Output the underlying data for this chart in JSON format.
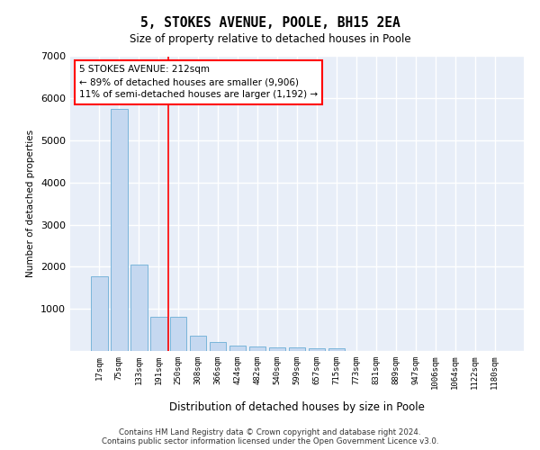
{
  "title": "5, STOKES AVENUE, POOLE, BH15 2EA",
  "subtitle": "Size of property relative to detached houses in Poole",
  "xlabel": "Distribution of detached houses by size in Poole",
  "ylabel": "Number of detached properties",
  "categories": [
    "17sqm",
    "75sqm",
    "133sqm",
    "191sqm",
    "250sqm",
    "308sqm",
    "366sqm",
    "424sqm",
    "482sqm",
    "540sqm",
    "599sqm",
    "657sqm",
    "715sqm",
    "773sqm",
    "831sqm",
    "889sqm",
    "947sqm",
    "1006sqm",
    "1064sqm",
    "1122sqm",
    "1180sqm"
  ],
  "values": [
    1780,
    5760,
    2060,
    820,
    820,
    360,
    210,
    120,
    105,
    95,
    80,
    70,
    60,
    0,
    0,
    0,
    0,
    0,
    0,
    0,
    0
  ],
  "bar_color": "#c5d8f0",
  "bar_edge_color": "#6baed6",
  "background_color": "#e8eef8",
  "grid_color": "#ffffff",
  "vline_position": 3.5,
  "vline_color": "red",
  "annotation_text_line1": "5 STOKES AVENUE: 212sqm",
  "annotation_text_line2": "← 89% of detached houses are smaller (9,906)",
  "annotation_text_line3": "11% of semi-detached houses are larger (1,192) →",
  "ylim": [
    0,
    7000
  ],
  "yticks": [
    0,
    1000,
    2000,
    3000,
    4000,
    5000,
    6000,
    7000
  ],
  "footer_line1": "Contains HM Land Registry data © Crown copyright and database right 2024.",
  "footer_line2": "Contains public sector information licensed under the Open Government Licence v3.0."
}
